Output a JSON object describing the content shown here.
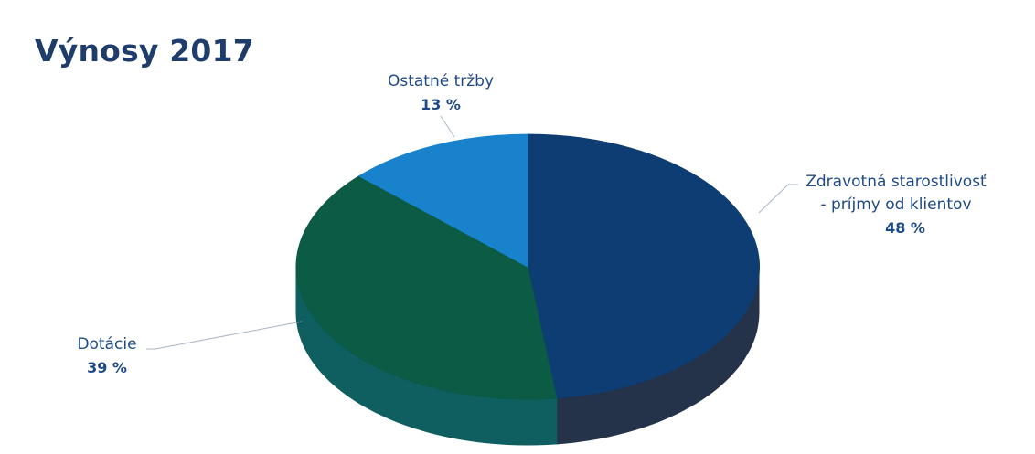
{
  "chart_data": {
    "type": "pie",
    "title": "Výnosy 2017",
    "slices": [
      {
        "label": [
          "Zdravotná starostlivosť",
          "- príjmy od klientov"
        ],
        "value": 48,
        "value_text": "48 %",
        "color": "#0d3d73",
        "side_color": "#24324a"
      },
      {
        "label": [
          "Dotácie"
        ],
        "value": 39,
        "value_text": "39 %",
        "color": "#0b5b45",
        "side_color": "#0f5e60"
      },
      {
        "label": [
          "Ostatné tržby"
        ],
        "value": 13,
        "value_text": "13 %",
        "color": "#1883cc",
        "side_color": "#1576b6"
      }
    ],
    "legend": "none",
    "style": "3d-pie"
  }
}
